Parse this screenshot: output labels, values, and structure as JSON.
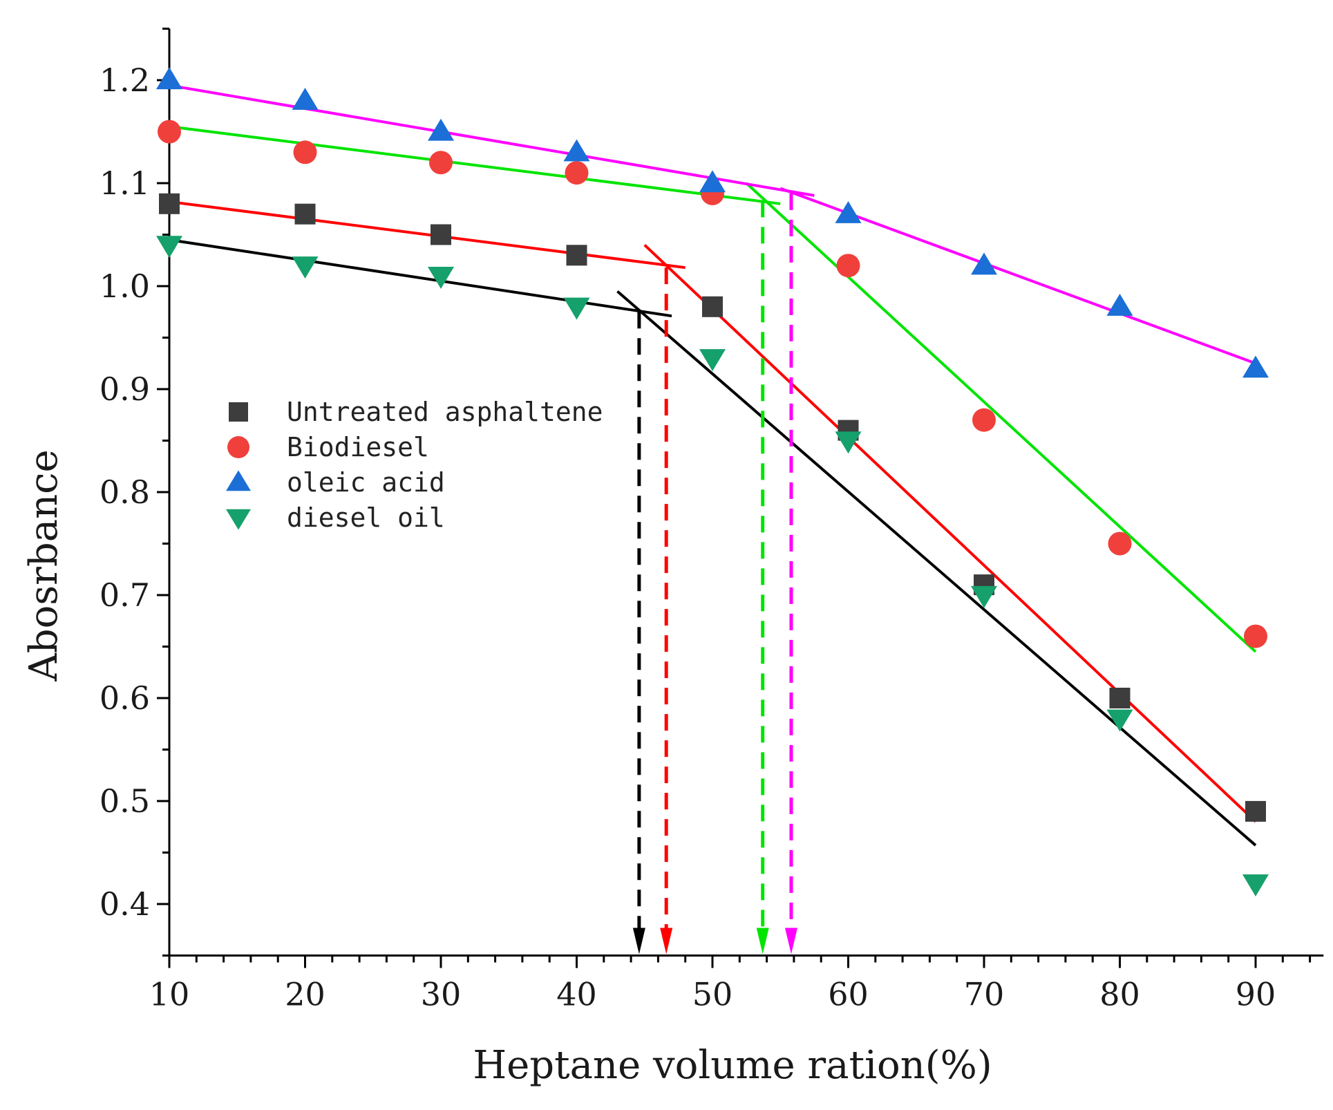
{
  "chart_data": {
    "type": "scatter",
    "title": "",
    "xlabel": "Heptane volume ration(%)",
    "ylabel": "Abosrbance",
    "xlim": [
      10,
      95
    ],
    "ylim": [
      0.35,
      1.25
    ],
    "x_ticks": [
      10,
      20,
      30,
      40,
      50,
      60,
      70,
      80,
      90
    ],
    "x_tick_labels": [
      "10",
      "20",
      "30",
      "40",
      "50",
      "60",
      "70",
      "80",
      "90"
    ],
    "y_ticks": [
      0.4,
      0.5,
      0.6,
      0.7,
      0.8,
      0.9,
      1.0,
      1.1,
      1.2
    ],
    "y_tick_labels": [
      "0.4",
      "0.5",
      "0.6",
      "0.7",
      "0.8",
      "0.9",
      "1.0",
      "1.1",
      "1.2"
    ],
    "legend_position": "center-left",
    "series": [
      {
        "name": "Untreated asphaltene",
        "marker": "square",
        "color": "#3d3d3d",
        "x": [
          10,
          20,
          30,
          40,
          50,
          60,
          70,
          80,
          90
        ],
        "values": [
          1.08,
          1.07,
          1.05,
          1.03,
          0.98,
          0.86,
          0.71,
          0.6,
          0.49
        ]
      },
      {
        "name": "Biodiesel",
        "marker": "circle",
        "color": "#f0403c",
        "x": [
          10,
          20,
          30,
          40,
          50,
          60,
          70,
          80,
          90
        ],
        "values": [
          1.15,
          1.13,
          1.12,
          1.11,
          1.09,
          1.02,
          0.87,
          0.75,
          0.66
        ]
      },
      {
        "name": "oleic acid",
        "marker": "triangle-up",
        "color": "#1b6fd6",
        "x": [
          10,
          20,
          30,
          40,
          50,
          60,
          70,
          80,
          90
        ],
        "values": [
          1.2,
          1.18,
          1.15,
          1.13,
          1.1,
          1.07,
          1.02,
          0.98,
          0.92
        ]
      },
      {
        "name": "diesel oil",
        "marker": "triangle-down",
        "color": "#16a06b",
        "x": [
          10,
          20,
          30,
          40,
          50,
          60,
          70,
          80,
          90
        ],
        "values": [
          1.04,
          1.02,
          1.01,
          0.98,
          0.93,
          0.85,
          0.7,
          0.58,
          0.42
        ]
      }
    ],
    "fit_lines": [
      {
        "name": "black-low-fit",
        "color": "#000000",
        "x": [
          10,
          47
        ],
        "values": [
          1.045,
          0.971
        ]
      },
      {
        "name": "black-high-fit",
        "color": "#000000",
        "x": [
          43,
          90
        ],
        "values": [
          0.995,
          0.457
        ]
      },
      {
        "name": "red-low-fit",
        "color": "#ff0000",
        "x": [
          10,
          48
        ],
        "values": [
          1.082,
          1.018
        ]
      },
      {
        "name": "red-high-fit",
        "color": "#ff0000",
        "x": [
          45,
          90
        ],
        "values": [
          1.04,
          0.48
        ]
      },
      {
        "name": "green-low-fit",
        "color": "#00e400",
        "x": [
          10,
          55
        ],
        "values": [
          1.155,
          1.08
        ]
      },
      {
        "name": "green-high-fit",
        "color": "#00e400",
        "x": [
          52.5,
          90
        ],
        "values": [
          1.1,
          0.645
        ]
      },
      {
        "name": "magenta-low-fit",
        "color": "#ff00ff",
        "x": [
          10,
          57.5
        ],
        "values": [
          1.195,
          1.088
        ]
      },
      {
        "name": "magenta-high-fit",
        "color": "#ff00ff",
        "x": [
          55,
          90
        ],
        "values": [
          1.095,
          0.925
        ]
      }
    ],
    "onset_markers": [
      {
        "name": "black-onset",
        "color": "#000000",
        "x": 44.6,
        "from": 0.975
      },
      {
        "name": "red-onset",
        "color": "#ff0000",
        "x": 46.6,
        "from": 1.018
      },
      {
        "name": "green-onset",
        "color": "#00e400",
        "x": 53.7,
        "from": 1.083
      },
      {
        "name": "magenta-onset",
        "color": "#ff00ff",
        "x": 55.8,
        "from": 1.09
      }
    ]
  }
}
